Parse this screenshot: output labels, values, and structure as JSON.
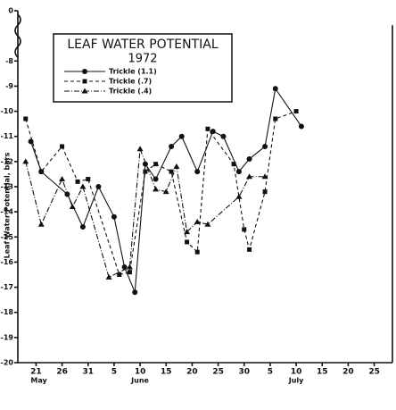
{
  "chart_data": {
    "type": "line",
    "legend_title": "LEAF WATER POTENTIAL",
    "legend_subtitle": "1972",
    "y_label": "Leaf Water Potential, bars",
    "months": [
      "May",
      "June",
      "July"
    ],
    "ylim": [
      -20,
      0
    ],
    "y_break": [
      -7,
      -1
    ],
    "yticks": [
      0,
      -8,
      -9,
      -10,
      -11,
      -12,
      -13,
      -14,
      -15,
      -16,
      -17,
      -18,
      -19,
      -20
    ],
    "xlim": [
      -3.5,
      68.5
    ],
    "xticks": [
      {
        "value": 0,
        "label": "21"
      },
      {
        "value": 5,
        "label": "26"
      },
      {
        "value": 10,
        "label": "31"
      },
      {
        "value": 15,
        "label": "5"
      },
      {
        "value": 20,
        "label": "10"
      },
      {
        "value": 25,
        "label": "15"
      },
      {
        "value": 30,
        "label": "20"
      },
      {
        "value": 35,
        "label": "25"
      },
      {
        "value": 40,
        "label": "30"
      },
      {
        "value": 45,
        "label": "5"
      },
      {
        "value": 50,
        "label": "10"
      },
      {
        "value": 55,
        "label": "15"
      },
      {
        "value": 60,
        "label": "20"
      },
      {
        "value": 65,
        "label": "25"
      }
    ],
    "series": [
      {
        "name": "Trickle  (1.1)",
        "marker": "circle",
        "dash": "solid",
        "color": "#111",
        "x": [
          -1,
          1,
          6,
          9,
          12,
          15,
          17,
          19,
          21,
          23,
          26,
          28,
          31,
          34,
          36,
          39,
          41,
          44,
          46,
          51
        ],
        "values": [
          -11.2,
          -12.4,
          -13.3,
          -14.6,
          -13.0,
          -14.2,
          -16.2,
          -17.2,
          -12.1,
          -12.7,
          -11.4,
          -11.0,
          -12.4,
          -10.8,
          -11.0,
          -12.4,
          -11.9,
          -11.4,
          -9.1,
          -10.6
        ]
      },
      {
        "name": "Trickle  (.7)",
        "marker": "square",
        "dash": "dashed",
        "color": "#111",
        "x": [
          -2,
          1,
          5,
          8,
          10,
          16,
          18,
          21,
          23,
          26,
          29,
          31,
          33,
          38,
          40,
          41,
          44,
          46,
          50
        ],
        "values": [
          -10.3,
          -12.4,
          -11.4,
          -12.8,
          -12.7,
          -16.5,
          -16.4,
          -12.4,
          -12.1,
          -12.4,
          -15.2,
          -15.6,
          -10.7,
          -12.1,
          -14.7,
          -15.5,
          -13.2,
          -10.3,
          -10.0
        ]
      },
      {
        "name": "Trickle  (.4)",
        "marker": "triangle",
        "dash": "dashdot",
        "color": "#111",
        "x": [
          -2,
          1,
          5,
          7,
          9,
          14,
          18,
          20,
          23,
          25,
          27,
          29,
          31,
          33,
          39,
          41,
          44
        ],
        "values": [
          -12.0,
          -14.5,
          -12.7,
          -13.8,
          -13.0,
          -16.6,
          -16.2,
          -11.5,
          -13.1,
          -13.2,
          -12.2,
          -14.8,
          -14.4,
          -14.5,
          -13.4,
          -12.6,
          -12.6
        ]
      }
    ]
  }
}
